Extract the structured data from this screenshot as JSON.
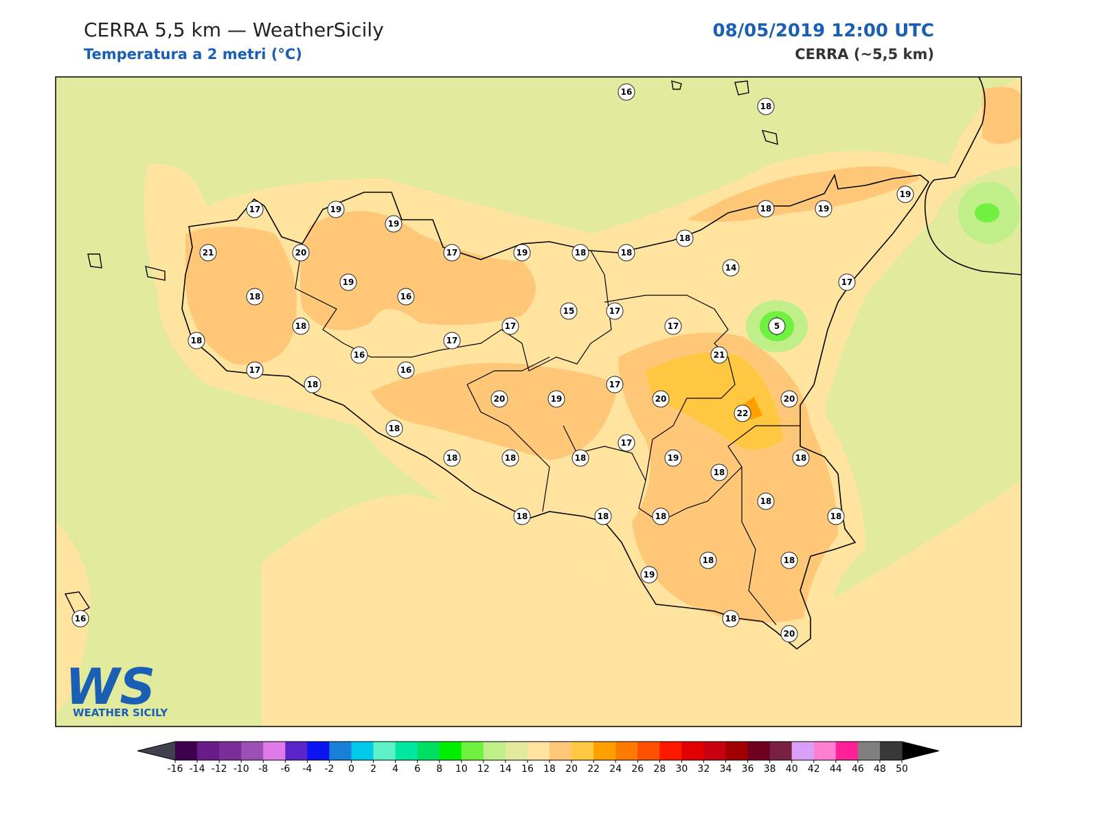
{
  "header": {
    "title": "CERRA 5,5 km — WeatherSicily",
    "subtitle": "Temperatura a 2 metri (°C)",
    "datetime": "08/05/2019 12:00 UTC",
    "model": "CERRA (~5,5 km)"
  },
  "map": {
    "stations": [
      16,
      18,
      17,
      19,
      19,
      21,
      20,
      17,
      19,
      18,
      18,
      18,
      18,
      19,
      19,
      14,
      17,
      19,
      18,
      16,
      15,
      17,
      17,
      17,
      5,
      18,
      18,
      17,
      21,
      16,
      16,
      17,
      18,
      17,
      20,
      19,
      20,
      20,
      22,
      18,
      17,
      18,
      18,
      18,
      19,
      18,
      18,
      18,
      18,
      18,
      18,
      18,
      19,
      18,
      18,
      16,
      18,
      20
    ]
  },
  "colorbar": {
    "ticks": [
      -16,
      -14,
      -12,
      -10,
      -8,
      -6,
      -4,
      -2,
      0,
      2,
      4,
      6,
      8,
      10,
      12,
      14,
      16,
      18,
      20,
      22,
      24,
      26,
      28,
      30,
      32,
      34,
      36,
      38,
      40,
      42,
      44,
      46,
      48,
      50
    ],
    "colors": [
      "#3c004f",
      "#6a1b8a",
      "#7b2d9a",
      "#9c4fb5",
      "#e07ae8",
      "#5a24c8",
      "#0a14f0",
      "#1a7fd8",
      "#00c8e8",
      "#5ff0c8",
      "#00e8a0",
      "#00e060",
      "#00f000",
      "#70f040",
      "#c0ee88",
      "#e0ea9a",
      "#ffe4a0",
      "#ffc878",
      "#ffc840",
      "#ffa000",
      "#ff7a00",
      "#ff5000",
      "#ff1800",
      "#e00000",
      "#c80010",
      "#a00000",
      "#700020",
      "#7a2040",
      "#d8a0f8",
      "#ff80d0",
      "#ff2098",
      "#808080",
      "#383838"
    ],
    "under_color": "#404050",
    "over_color": "#000000"
  },
  "logo": {
    "mark": "WS",
    "name": "WEATHER SICILY"
  }
}
